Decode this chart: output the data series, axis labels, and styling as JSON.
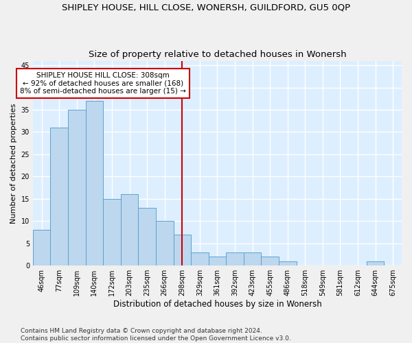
{
  "title": "SHIPLEY HOUSE, HILL CLOSE, WONERSH, GUILDFORD, GU5 0QP",
  "subtitle": "Size of property relative to detached houses in Wonersh",
  "xlabel": "Distribution of detached houses by size in Wonersh",
  "ylabel": "Number of detached properties",
  "categories": [
    "46sqm",
    "77sqm",
    "109sqm",
    "140sqm",
    "172sqm",
    "203sqm",
    "235sqm",
    "266sqm",
    "298sqm",
    "329sqm",
    "361sqm",
    "392sqm",
    "423sqm",
    "455sqm",
    "486sqm",
    "518sqm",
    "549sqm",
    "581sqm",
    "612sqm",
    "644sqm",
    "675sqm"
  ],
  "values": [
    8,
    31,
    35,
    37,
    15,
    16,
    13,
    10,
    7,
    3,
    2,
    3,
    3,
    2,
    1,
    0,
    0,
    0,
    0,
    1,
    0
  ],
  "bar_color": "#bdd7ee",
  "bar_edge_color": "#5ba3d0",
  "marker_index": 8,
  "marker_color": "#cc0000",
  "annotation_text": "SHIPLEY HOUSE HILL CLOSE: 308sqm\n← 92% of detached houses are smaller (168)\n8% of semi-detached houses are larger (15) →",
  "annotation_box_color": "#ffffff",
  "annotation_border_color": "#cc0000",
  "ylim": [
    0,
    46
  ],
  "yticks": [
    0,
    5,
    10,
    15,
    20,
    25,
    30,
    35,
    40,
    45
  ],
  "background_color": "#ddeeff",
  "fig_background_color": "#f0f0f0",
  "grid_color": "#ffffff",
  "footer": "Contains HM Land Registry data © Crown copyright and database right 2024.\nContains public sector information licensed under the Open Government Licence v3.0.",
  "title_fontsize": 9.5,
  "subtitle_fontsize": 9.5,
  "xlabel_fontsize": 8.5,
  "ylabel_fontsize": 8,
  "tick_fontsize": 7,
  "annotation_fontsize": 7.5,
  "footer_fontsize": 6.5
}
